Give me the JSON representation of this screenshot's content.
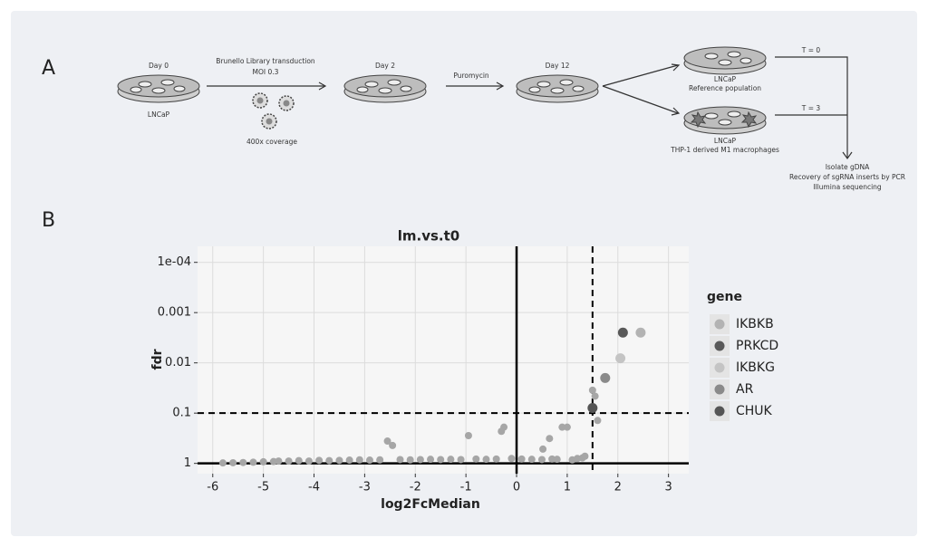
{
  "panels": {
    "a": "A",
    "b": "B"
  },
  "diagram": {
    "day0": {
      "label": "Day 0",
      "cells": "LNCaP"
    },
    "transduction": {
      "library": "Brunello Library transduction",
      "moi": "MOI 0.3",
      "coverage": "400x coverage"
    },
    "day2": "Day 2",
    "selection": "Puromycin",
    "day12": "Day 12",
    "reference": {
      "cells": "LNCaP",
      "population": "Reference population",
      "time": "T = 0"
    },
    "coculture": {
      "cells": "LNCaP",
      "population": "THP-1 derived M1 macrophages",
      "time": "T = 3"
    },
    "readout": [
      "Isolate gDNA",
      "Recovery of sgRNA inserts by PCR",
      "Illumina sequencing"
    ]
  },
  "chart_data": {
    "type": "scatter",
    "title": "lm.vs.t0",
    "x_label": "log2FcMedian",
    "y_label": "fdr",
    "xlim": [
      -6.3,
      3.4
    ],
    "ylim": [
      1.6,
      4.8e-05
    ],
    "y_log": true,
    "xticks": [
      -6,
      -5,
      -4,
      -3,
      -2,
      -1,
      0,
      1,
      2,
      3
    ],
    "yticks": [
      {
        "value": 0.0001,
        "label": "1e-04"
      },
      0.001,
      0.01,
      0.1,
      1
    ],
    "grid": true,
    "legend_title": "gene",
    "legend_position": "right",
    "reference_lines": [
      {
        "axis": "x",
        "value": 0,
        "dashed": false
      },
      {
        "axis": "x",
        "value": 1.5,
        "dashed": true
      },
      {
        "axis": "y",
        "value": 0.1,
        "dashed": true
      },
      {
        "axis": "y",
        "value": 1,
        "dashed": false
      }
    ],
    "series": [
      {
        "color": "#a6a6a6",
        "x": [
          -5.8,
          -5.6,
          -5.4,
          -5.2,
          -5.0,
          -4.8,
          -4.7,
          -4.5,
          -4.3,
          -4.1,
          -3.9,
          -3.7,
          -3.5,
          -3.3,
          -3.1,
          -2.9,
          -2.7,
          -2.3,
          -2.1,
          -1.9,
          -1.7,
          -1.5,
          -1.3,
          -1.1,
          -0.8,
          -0.6,
          -0.4,
          -0.1,
          0.1,
          0.3,
          0.5,
          0.7,
          0.8,
          1.1,
          1.2,
          1.3,
          -2.55,
          -2.45,
          -0.95,
          -0.3,
          -0.25,
          0.52,
          0.65,
          0.9,
          1.0,
          1.35,
          1.5,
          1.55,
          1.6
        ],
        "values": [
          0.98,
          0.97,
          0.96,
          0.95,
          0.93,
          0.92,
          0.9,
          0.9,
          0.88,
          0.9,
          0.87,
          0.88,
          0.87,
          0.86,
          0.85,
          0.86,
          0.85,
          0.84,
          0.85,
          0.84,
          0.83,
          0.84,
          0.83,
          0.84,
          0.82,
          0.83,
          0.82,
          0.8,
          0.82,
          0.83,
          0.84,
          0.82,
          0.83,
          0.85,
          0.8,
          0.78,
          0.36,
          0.44,
          0.28,
          0.23,
          0.19,
          0.52,
          0.32,
          0.19,
          0.19,
          0.72,
          0.035,
          0.046,
          0.14
        ]
      },
      {
        "name": "IKBKB",
        "color": "#b3b3b3",
        "x": [
          2.45
        ],
        "values": [
          0.0025
        ]
      },
      {
        "name": "PRKCD",
        "color": "#595959",
        "x": [
          2.1
        ],
        "values": [
          0.0025
        ]
      },
      {
        "name": "IKBKG",
        "color": "#c4c4c4",
        "x": [
          2.05
        ],
        "values": [
          0.0081
        ]
      },
      {
        "name": "AR",
        "color": "#8a8a8a",
        "x": [
          1.75
        ],
        "values": [
          0.02
        ]
      },
      {
        "name": "CHUK",
        "color": "#555555",
        "x": [
          1.5
        ],
        "values": [
          0.079
        ]
      }
    ]
  }
}
